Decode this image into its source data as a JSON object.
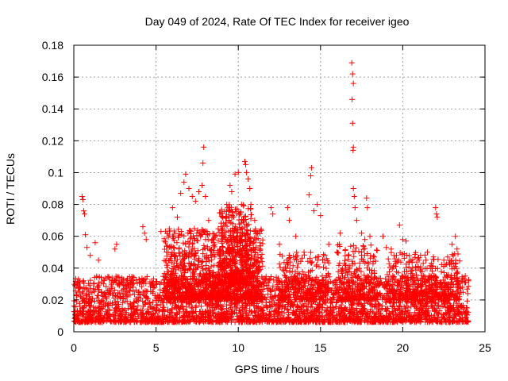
{
  "chart_data": {
    "type": "scatter",
    "title": "Day 049 of 2024, Rate Of TEC Index for receiver igeo",
    "xlabel": "GPS time / hours",
    "ylabel": "ROTI / TECUs",
    "xlim": [
      0,
      25
    ],
    "ylim": [
      0,
      0.18
    ],
    "x_ticks": [
      0,
      5,
      10,
      15,
      20,
      25
    ],
    "y_ticks": [
      0,
      0.02,
      0.04,
      0.06,
      0.08,
      0.1,
      0.12,
      0.14,
      0.16,
      0.18
    ],
    "x_tick_labels": [
      "0",
      "5",
      "10",
      "15",
      "20",
      "25"
    ],
    "y_tick_labels": [
      "0",
      "0.02",
      "0.04",
      "0.06",
      "0.08",
      "0.1",
      "0.12",
      "0.14",
      "0.16",
      "0.18"
    ],
    "grid": true,
    "marker": "+",
    "color": "#ff0000",
    "series": [
      {
        "name": "ROTI",
        "points": [
          [
            0.2,
            0.03
          ],
          [
            0.3,
            0.025
          ],
          [
            0.5,
            0.085
          ],
          [
            0.55,
            0.083
          ],
          [
            0.6,
            0.076
          ],
          [
            0.65,
            0.074
          ],
          [
            0.7,
            0.061
          ],
          [
            0.8,
            0.053
          ],
          [
            1.0,
            0.048
          ],
          [
            1.3,
            0.056
          ],
          [
            1.5,
            0.045
          ],
          [
            2.5,
            0.052
          ],
          [
            2.6,
            0.055
          ],
          [
            3.5,
            0.032
          ],
          [
            4.2,
            0.066
          ],
          [
            4.3,
            0.062
          ],
          [
            4.4,
            0.058
          ],
          [
            5.3,
            0.063
          ],
          [
            5.5,
            0.057
          ],
          [
            6.0,
            0.078
          ],
          [
            6.3,
            0.072
          ],
          [
            6.5,
            0.087
          ],
          [
            6.7,
            0.094
          ],
          [
            6.8,
            0.099
          ],
          [
            7.0,
            0.09
          ],
          [
            7.2,
            0.085
          ],
          [
            7.4,
            0.082
          ],
          [
            7.6,
            0.088
          ],
          [
            7.8,
            0.092
          ],
          [
            7.9,
            0.116
          ],
          [
            7.85,
            0.106
          ],
          [
            8.0,
            0.085
          ],
          [
            8.2,
            0.07
          ],
          [
            8.5,
            0.058
          ],
          [
            9.0,
            0.06
          ],
          [
            9.3,
            0.08
          ],
          [
            9.5,
            0.092
          ],
          [
            9.6,
            0.088
          ],
          [
            9.8,
            0.099
          ],
          [
            10.0,
            0.1
          ],
          [
            10.2,
            0.08
          ],
          [
            10.4,
            0.107
          ],
          [
            10.45,
            0.105
          ],
          [
            10.5,
            0.1
          ],
          [
            10.6,
            0.096
          ],
          [
            10.7,
            0.09
          ],
          [
            11.0,
            0.07
          ],
          [
            12.0,
            0.078
          ],
          [
            12.1,
            0.074
          ],
          [
            12.5,
            0.055
          ],
          [
            13.0,
            0.078
          ],
          [
            13.1,
            0.07
          ],
          [
            13.5,
            0.06
          ],
          [
            14.0,
            0.05
          ],
          [
            14.3,
            0.086
          ],
          [
            14.4,
            0.098
          ],
          [
            14.45,
            0.103
          ],
          [
            14.6,
            0.076
          ],
          [
            14.8,
            0.08
          ],
          [
            15.0,
            0.073
          ],
          [
            15.5,
            0.055
          ],
          [
            16.0,
            0.05
          ],
          [
            16.2,
            0.062
          ],
          [
            16.9,
            0.169
          ],
          [
            16.95,
            0.162
          ],
          [
            17.0,
            0.156
          ],
          [
            16.92,
            0.146
          ],
          [
            16.95,
            0.131
          ],
          [
            17.0,
            0.116
          ],
          [
            16.98,
            0.114
          ],
          [
            17.0,
            0.09
          ],
          [
            17.05,
            0.085
          ],
          [
            17.1,
            0.078
          ],
          [
            17.2,
            0.07
          ],
          [
            17.5,
            0.062
          ],
          [
            17.7,
            0.058
          ],
          [
            17.8,
            0.084
          ],
          [
            17.85,
            0.078
          ],
          [
            18.0,
            0.06
          ],
          [
            18.8,
            0.06
          ],
          [
            19.0,
            0.053
          ],
          [
            19.3,
            0.052
          ],
          [
            19.8,
            0.067
          ],
          [
            20.0,
            0.058
          ],
          [
            20.2,
            0.057
          ],
          [
            20.5,
            0.045
          ],
          [
            21.0,
            0.045
          ],
          [
            21.5,
            0.05
          ],
          [
            22.0,
            0.078
          ],
          [
            22.05,
            0.074
          ],
          [
            22.1,
            0.072
          ],
          [
            22.5,
            0.045
          ],
          [
            23.0,
            0.055
          ],
          [
            23.2,
            0.06
          ],
          [
            23.3,
            0.052
          ],
          [
            23.8,
            0.035
          ],
          [
            24.0,
            0.032
          ]
        ]
      }
    ],
    "density_bands": [
      {
        "x": [
          0,
          24
        ],
        "y_base": [
          0.006,
          0.035
        ],
        "count": 3200
      },
      {
        "x": [
          5.5,
          11.5
        ],
        "y_base": [
          0.02,
          0.065
        ],
        "count": 1100
      },
      {
        "x": [
          8.8,
          10.8
        ],
        "y_base": [
          0.03,
          0.08
        ],
        "count": 400
      },
      {
        "x": [
          12.5,
          15.5
        ],
        "y_base": [
          0.02,
          0.05
        ],
        "count": 250
      },
      {
        "x": [
          16,
          18.5
        ],
        "y_base": [
          0.02,
          0.055
        ],
        "count": 250
      },
      {
        "x": [
          19,
          23.5
        ],
        "y_base": [
          0.02,
          0.05
        ],
        "count": 400
      }
    ]
  }
}
